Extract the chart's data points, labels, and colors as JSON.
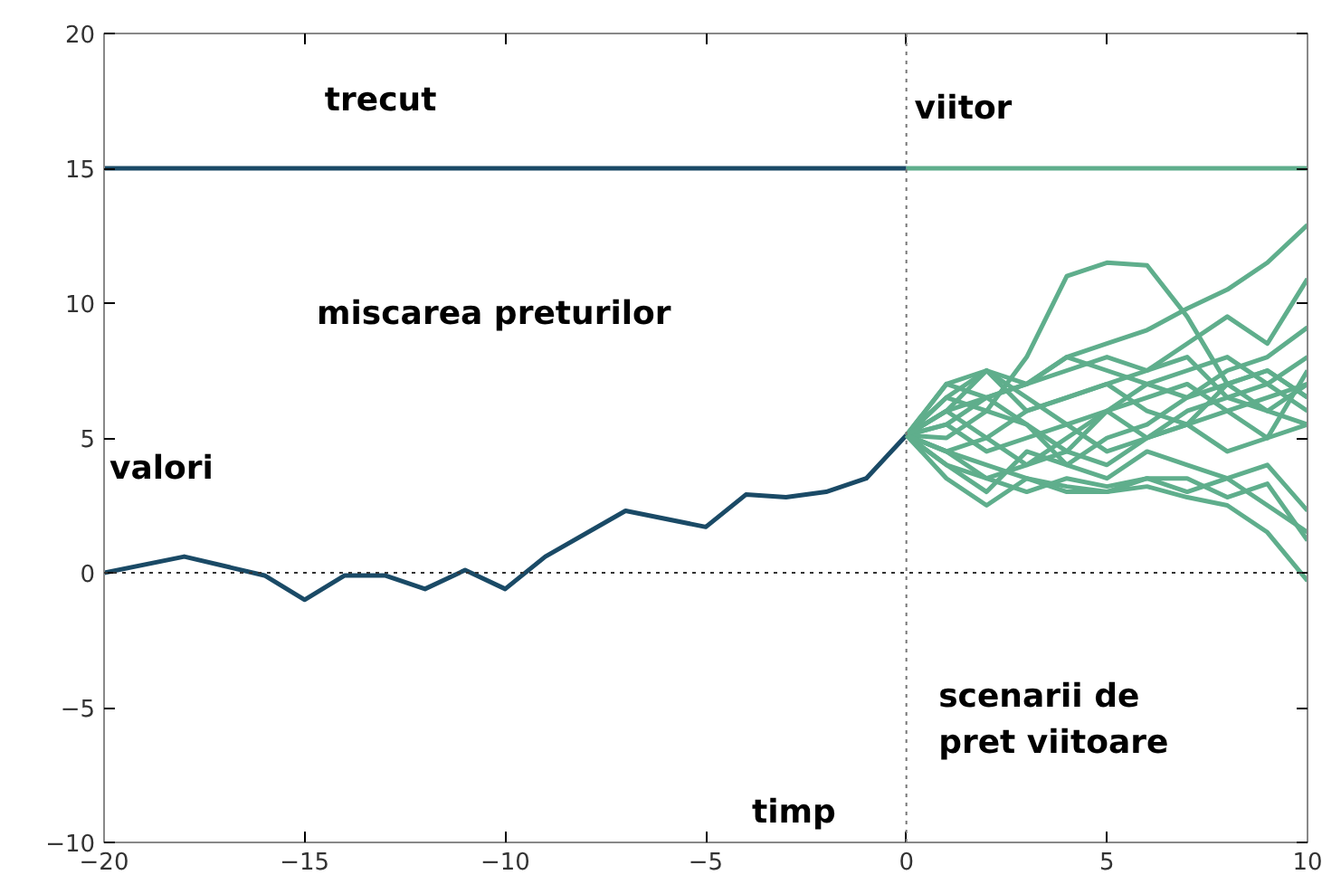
{
  "chart_data": {
    "type": "line",
    "xlabel": "timp",
    "ylabel": "valori",
    "xlim": [
      -20,
      10
    ],
    "ylim": [
      -10,
      20
    ],
    "xticks": [
      -20,
      -15,
      -10,
      -5,
      0,
      5,
      10
    ],
    "yticks": [
      -10,
      -5,
      0,
      5,
      10,
      15,
      20
    ],
    "grid": false,
    "marker": "none",
    "line_style": "solid",
    "ref_lines": [
      {
        "axis": "y",
        "value": 0,
        "color": "#333333",
        "line_style": "dotted"
      },
      {
        "axis": "x",
        "value": 0,
        "color": "#777777",
        "line_style": "dotted"
      }
    ],
    "annotations": [
      "trecut",
      "viitor",
      "miscarea preturilor",
      "scenarii de\npret viitoare"
    ],
    "series": [
      {
        "color": "#1a4a66",
        "x": [
          -20,
          0
        ],
        "values": [
          15,
          15
        ]
      },
      {
        "color": "#5fae8c",
        "x": [
          0,
          10
        ],
        "values": [
          15,
          15
        ]
      },
      {
        "color": "#1a4a66",
        "x": [
          -20,
          -18,
          -16,
          -15,
          -14,
          -13,
          -12,
          -11,
          -10,
          -9,
          -7,
          -5,
          -4,
          -3,
          -2,
          -1,
          0
        ],
        "values": [
          0,
          0.6,
          -0.1,
          -1.0,
          -0.1,
          -0.1,
          -0.6,
          0.1,
          -0.6,
          0.6,
          2.3,
          1.7,
          2.9,
          2.8,
          3.0,
          3.5,
          5.1
        ]
      },
      {
        "color": "#5fae8c",
        "x": [
          0,
          1,
          2,
          3,
          4,
          5,
          6,
          7,
          8,
          9,
          10
        ],
        "values": [
          5.1,
          6,
          6.5,
          7,
          8,
          8.5,
          9,
          9.8,
          10.5,
          11.5,
          12.9
        ]
      },
      {
        "color": "#5fae8c",
        "x": [
          0,
          1,
          2,
          3,
          4,
          5,
          6,
          7,
          8,
          9,
          10
        ],
        "values": [
          5.1,
          6.5,
          6,
          8,
          11,
          11.5,
          11.4,
          9.5,
          7,
          6,
          5.5
        ]
      },
      {
        "color": "#5fae8c",
        "x": [
          0,
          1,
          2,
          3,
          4,
          5,
          6,
          7,
          8,
          9,
          10
        ],
        "values": [
          5.1,
          5.5,
          6.5,
          7,
          7.5,
          8,
          7.5,
          8.5,
          9.5,
          8.5,
          10.9
        ]
      },
      {
        "color": "#5fae8c",
        "x": [
          0,
          1,
          2,
          3,
          4,
          5,
          6,
          7,
          8,
          9,
          10
        ],
        "values": [
          5.1,
          4.5,
          3.5,
          4,
          5,
          6,
          7,
          6.5,
          7.5,
          8,
          9.1
        ]
      },
      {
        "color": "#5fae8c",
        "x": [
          0,
          1,
          2,
          3,
          4,
          5,
          6,
          7,
          8,
          9,
          10
        ],
        "values": [
          5.1,
          7,
          7.5,
          7,
          8,
          7.5,
          7,
          7.5,
          8,
          7,
          8
        ]
      },
      {
        "color": "#5fae8c",
        "x": [
          0,
          1,
          2,
          3,
          4,
          5,
          6,
          7,
          8,
          9,
          10
        ],
        "values": [
          5.1,
          6,
          5,
          6,
          6.5,
          7,
          7.5,
          8,
          6.5,
          6,
          7
        ]
      },
      {
        "color": "#5fae8c",
        "x": [
          0,
          1,
          2,
          3,
          4,
          5,
          6,
          7,
          8,
          9,
          10
        ],
        "values": [
          5.1,
          4,
          3,
          4.5,
          4,
          5,
          5.5,
          6.5,
          7,
          7.5,
          6.5
        ]
      },
      {
        "color": "#5fae8c",
        "x": [
          0,
          1,
          2,
          3,
          4,
          5,
          6,
          7,
          8,
          9,
          10
        ],
        "values": [
          5.1,
          4.5,
          4,
          3.5,
          3,
          3,
          3.2,
          2.8,
          2.5,
          1.5,
          -0.3
        ]
      },
      {
        "color": "#5fae8c",
        "x": [
          0,
          1,
          2,
          3,
          4,
          5,
          6,
          7,
          8,
          9,
          10
        ],
        "values": [
          5.1,
          4,
          3.5,
          3,
          3.5,
          3.2,
          3.5,
          3,
          3.5,
          2.5,
          1.5
        ]
      },
      {
        "color": "#5fae8c",
        "x": [
          0,
          1,
          2,
          3,
          4,
          5,
          6,
          7,
          8,
          9,
          10
        ],
        "values": [
          5.1,
          3.5,
          2.5,
          3.5,
          3.2,
          3,
          3.5,
          3.5,
          2.8,
          3.3,
          1.2
        ]
      },
      {
        "color": "#5fae8c",
        "x": [
          0,
          1,
          2,
          3,
          4,
          5,
          6,
          7,
          8,
          9,
          10
        ],
        "values": [
          5.1,
          5.5,
          4.5,
          5,
          5.5,
          4.5,
          5,
          5.5,
          4.5,
          5,
          5.5
        ]
      },
      {
        "color": "#5fae8c",
        "x": [
          0,
          1,
          2,
          3,
          4,
          5,
          6,
          7,
          8,
          9,
          10
        ],
        "values": [
          5.1,
          6.5,
          7.5,
          6.5,
          5.5,
          6,
          5,
          6,
          6.5,
          7,
          6
        ]
      },
      {
        "color": "#5fae8c",
        "x": [
          0,
          1,
          2,
          3,
          4,
          5,
          6,
          7,
          8,
          9,
          10
        ],
        "values": [
          5.1,
          5,
          6,
          5.5,
          4.5,
          4,
          5,
          5.5,
          6,
          5,
          7.5
        ]
      },
      {
        "color": "#5fae8c",
        "x": [
          0,
          1,
          2,
          3,
          4,
          5,
          6,
          7,
          8,
          9,
          10
        ],
        "values": [
          5.1,
          7,
          6.5,
          5.5,
          4,
          3.5,
          4.5,
          4,
          3.5,
          4,
          2.3
        ]
      },
      {
        "color": "#5fae8c",
        "x": [
          0,
          1,
          2,
          3,
          4,
          5,
          6,
          7,
          8,
          9,
          10
        ],
        "values": [
          5.1,
          6,
          7.5,
          6,
          6.5,
          7,
          6,
          5.5,
          7,
          7.5,
          6.5
        ]
      },
      {
        "color": "#5fae8c",
        "x": [
          0,
          1,
          2,
          3,
          4,
          5,
          6,
          7,
          8,
          9,
          10
        ],
        "values": [
          5.1,
          4.5,
          5,
          4,
          4.5,
          6,
          6.5,
          7,
          6,
          6.5,
          7
        ]
      }
    ]
  }
}
